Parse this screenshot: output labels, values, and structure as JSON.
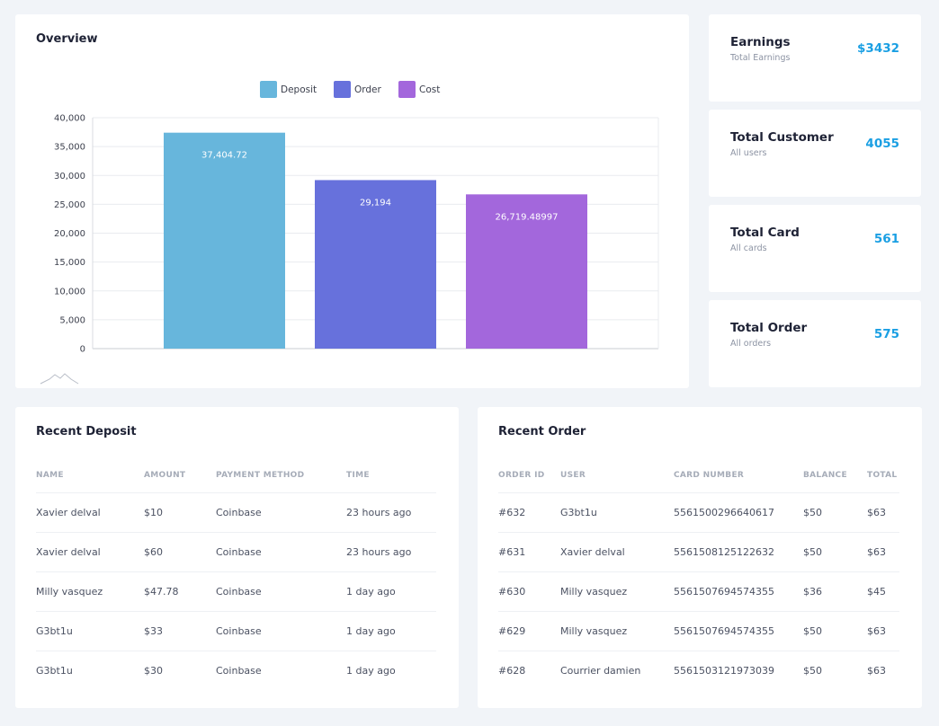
{
  "overview": {
    "title": "Overview"
  },
  "chart_data": {
    "type": "bar",
    "categories": [
      "Deposit",
      "Order",
      "Cost"
    ],
    "series": [
      {
        "name": "Deposit",
        "value": 37404.72,
        "label": "37,404.72",
        "color": "#67b6dc"
      },
      {
        "name": "Order",
        "value": 29194,
        "label": "29,194",
        "color": "#6771dc"
      },
      {
        "name": "Cost",
        "value": 26719.48997,
        "label": "26,719.48997",
        "color": "#a367dc"
      }
    ],
    "ylim": [
      0,
      40000
    ],
    "yticks": [
      "0",
      "5,000",
      "10,000",
      "15,000",
      "20,000",
      "25,000",
      "30,000",
      "35,000",
      "40,000"
    ],
    "legend_position": "top-center",
    "grid": true
  },
  "stats": [
    {
      "title": "Earnings",
      "subtitle": "Total Earnings",
      "value": "$3432"
    },
    {
      "title": "Total Customer",
      "subtitle": "All users",
      "value": "4055"
    },
    {
      "title": "Total Card",
      "subtitle": "All cards",
      "value": "561"
    },
    {
      "title": "Total Order",
      "subtitle": "All orders",
      "value": "575"
    }
  ],
  "recent_deposit": {
    "title": "Recent Deposit",
    "headers": [
      "NAME",
      "AMOUNT",
      "PAYMENT METHOD",
      "TIME"
    ],
    "rows": [
      [
        "Xavier delval",
        "$10",
        "Coinbase",
        "23 hours ago"
      ],
      [
        "Xavier delval",
        "$60",
        "Coinbase",
        "23 hours ago"
      ],
      [
        "Milly vasquez",
        "$47.78",
        "Coinbase",
        "1 day ago"
      ],
      [
        "G3bt1u",
        "$33",
        "Coinbase",
        "1 day ago"
      ],
      [
        "G3bt1u",
        "$30",
        "Coinbase",
        "1 day ago"
      ]
    ]
  },
  "recent_order": {
    "title": "Recent Order",
    "headers": [
      "ORDER ID",
      "USER",
      "CARD NUMBER",
      "BALANCE",
      "TOTAL"
    ],
    "rows": [
      [
        "#632",
        "G3bt1u",
        "5561500296640617",
        "$50",
        "$63"
      ],
      [
        "#631",
        "Xavier delval",
        "5561508125122632",
        "$50",
        "$63"
      ],
      [
        "#630",
        "Milly vasquez",
        "5561507694574355",
        "$36",
        "$45"
      ],
      [
        "#629",
        "Milly vasquez",
        "5561507694574355",
        "$50",
        "$63"
      ],
      [
        "#628",
        "Courrier damien",
        "5561503121973039",
        "$50",
        "$63"
      ]
    ]
  }
}
